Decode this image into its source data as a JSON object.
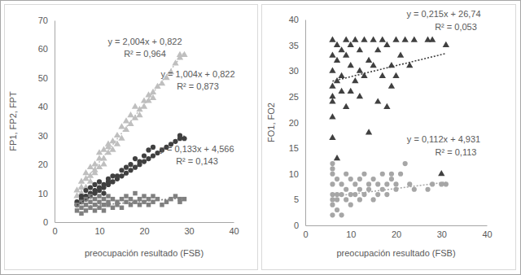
{
  "chart_data": [
    {
      "type": "scatter",
      "x_label": "preocupación resultado (FSB)",
      "y_label": "FP1, FP2, FPT",
      "xlim": [
        0,
        40
      ],
      "xticks": [
        0,
        10,
        20,
        30,
        40
      ],
      "ylim": [
        0,
        70
      ],
      "yticks": [
        0,
        10,
        20,
        30,
        40,
        50,
        60,
        70
      ],
      "grid": false,
      "series": [
        {
          "color": "#bfbfbf",
          "marker": "triangle",
          "x": [
            5,
            5,
            6,
            6,
            6,
            7,
            7,
            7,
            8,
            8,
            8,
            9,
            9,
            9,
            10,
            10,
            10,
            11,
            11,
            11,
            12,
            12,
            12,
            13,
            13,
            14,
            14,
            15,
            15,
            16,
            16,
            17,
            17,
            18,
            18,
            19,
            19,
            20,
            20,
            21,
            21,
            22,
            22,
            23,
            24,
            25,
            26,
            27,
            28,
            28,
            29
          ],
          "values": [
            11,
            9,
            12,
            14,
            10,
            15,
            12,
            17,
            16,
            19,
            14,
            20,
            17,
            18,
            22,
            19,
            24,
            22,
            25,
            20,
            26,
            24,
            27,
            28,
            25,
            30,
            27,
            29,
            33,
            32,
            35,
            34,
            37,
            36,
            40,
            39,
            37,
            40,
            42,
            42,
            44,
            43,
            45,
            47,
            48,
            50,
            52,
            55,
            57,
            58,
            58
          ],
          "trendline": {
            "slope": 2.004,
            "intercept": 0.822,
            "label": "y = 2,004x + 0,822",
            "r2_label": "R² = 0,964"
          }
        },
        {
          "color": "#404040",
          "marker": "circle",
          "x": [
            5,
            5,
            6,
            6,
            6,
            7,
            7,
            7,
            8,
            8,
            8,
            9,
            9,
            9,
            10,
            10,
            10,
            11,
            11,
            11,
            12,
            12,
            12,
            13,
            13,
            14,
            14,
            15,
            15,
            16,
            16,
            17,
            17,
            18,
            18,
            19,
            19,
            20,
            20,
            21,
            21,
            22,
            22,
            23,
            24,
            25,
            26,
            27,
            28,
            28,
            29
          ],
          "values": [
            6,
            7,
            7,
            8,
            9,
            8,
            9,
            11,
            9,
            10,
            12,
            10,
            11,
            13,
            11,
            12,
            14,
            12,
            13,
            10,
            13,
            14,
            15,
            14,
            16,
            15,
            16,
            16,
            18,
            17,
            19,
            18,
            20,
            19,
            22,
            20,
            21,
            21,
            23,
            22,
            25,
            23,
            26,
            24,
            25,
            26,
            27,
            28,
            29,
            30,
            29
          ],
          "trendline": {
            "slope": 1.004,
            "intercept": 0.822,
            "label": "y = 1,004x + 0,822",
            "r2_label": "R² = 0,873"
          }
        },
        {
          "color": "#808080",
          "marker": "square",
          "x": [
            5,
            5,
            6,
            6,
            6,
            7,
            7,
            7,
            8,
            8,
            8,
            9,
            9,
            9,
            10,
            10,
            10,
            11,
            11,
            11,
            12,
            12,
            12,
            13,
            13,
            14,
            14,
            15,
            15,
            16,
            16,
            17,
            17,
            18,
            18,
            19,
            19,
            20,
            20,
            21,
            21,
            22,
            22,
            23,
            24,
            25,
            26,
            27,
            28,
            28,
            29
          ],
          "values": [
            4,
            6,
            5,
            3,
            7,
            4,
            6,
            8,
            5,
            7,
            9,
            4,
            6,
            8,
            5,
            7,
            9,
            6,
            8,
            4,
            6,
            7,
            9,
            5,
            8,
            6,
            7,
            5,
            8,
            7,
            9,
            6,
            8,
            7,
            10,
            6,
            8,
            7,
            9,
            8,
            6,
            7,
            9,
            8,
            6,
            7,
            8,
            9,
            7,
            8,
            8
          ],
          "trendline": {
            "slope": 0.133,
            "intercept": 4.566,
            "label": "y = 0,133x + 4,566",
            "r2_label": "R² = 0,143"
          }
        }
      ]
    },
    {
      "type": "scatter",
      "x_label": "preocupación resultado (FSB)",
      "y_label": "FO1, FO2",
      "xlim": [
        0,
        40
      ],
      "xticks": [
        0,
        10,
        20,
        30,
        40
      ],
      "ylim": [
        0,
        40
      ],
      "yticks": [
        0,
        5,
        10,
        15,
        20,
        25,
        30,
        35,
        40
      ],
      "grid": false,
      "series": [
        {
          "color": "#404040",
          "marker": "triangle",
          "x": [
            6,
            6,
            6,
            6,
            6,
            6,
            6,
            6,
            7,
            7,
            7,
            7,
            8,
            8,
            8,
            9,
            9,
            9,
            10,
            10,
            10,
            11,
            11,
            12,
            12,
            12,
            13,
            13,
            14,
            14,
            15,
            15,
            16,
            16,
            17,
            17,
            18,
            18,
            19,
            19,
            20,
            20,
            21,
            22,
            23,
            24,
            27,
            28,
            30,
            31
          ],
          "values": [
            36,
            33,
            30,
            27,
            25,
            24,
            21,
            17,
            13,
            28,
            32,
            35,
            26,
            34,
            29,
            23,
            33,
            36,
            31,
            35,
            26,
            36,
            28,
            30,
            25,
            34,
            36,
            29,
            18,
            32,
            36,
            31,
            34,
            24,
            36,
            29,
            35,
            23,
            27,
            31,
            29,
            36,
            33,
            36,
            31,
            36,
            36,
            36,
            10,
            35
          ],
          "trendline": {
            "slope": 0.215,
            "intercept": 26.74,
            "label": "y = 0,215x + 26,74",
            "r2_label": "R² = 0,053"
          }
        },
        {
          "color": "#a6a6a6",
          "marker": "circle",
          "x": [
            6,
            6,
            6,
            6,
            6,
            6,
            6,
            6,
            7,
            7,
            7,
            7,
            8,
            8,
            8,
            9,
            9,
            9,
            10,
            10,
            10,
            11,
            11,
            12,
            12,
            12,
            13,
            13,
            14,
            14,
            15,
            15,
            16,
            16,
            17,
            17,
            18,
            18,
            19,
            19,
            20,
            20,
            21,
            22,
            23,
            24,
            27,
            28,
            30,
            31
          ],
          "values": [
            2,
            4,
            5,
            6,
            8,
            10,
            11,
            12,
            3,
            5,
            6,
            9,
            2,
            6,
            8,
            5,
            7,
            10,
            4,
            6,
            9,
            6,
            8,
            5,
            7,
            9,
            6,
            10,
            7,
            8,
            5,
            9,
            6,
            8,
            7,
            10,
            8,
            6,
            9,
            10,
            7,
            8,
            10,
            12,
            8,
            7,
            7,
            8,
            8,
            8
          ],
          "trendline": {
            "slope": 0.112,
            "intercept": 4.931,
            "label": "y = 0,112x + 4,931",
            "r2_label": "R² = 0,113"
          }
        }
      ]
    }
  ]
}
